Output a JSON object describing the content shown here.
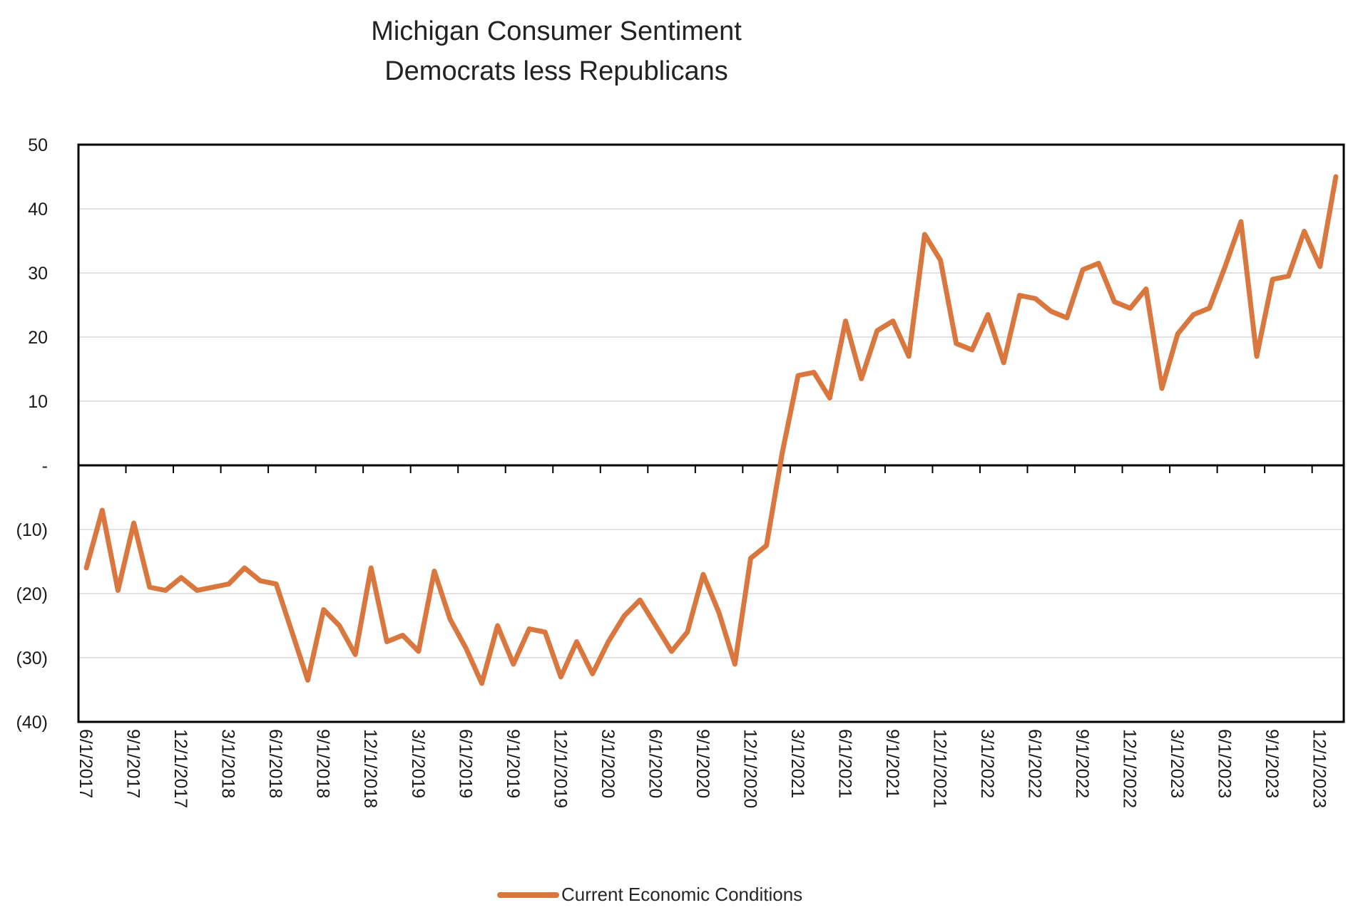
{
  "title": {
    "line1": "Michigan Consumer Sentiment",
    "line2": "Democrats less Republicans"
  },
  "legend": {
    "label": "Current Economic Conditions",
    "color": "#D9773E"
  },
  "chart_data": {
    "type": "line",
    "title": "Michigan Consumer Sentiment — Democrats less Republicans",
    "xlabel": "",
    "ylabel": "",
    "ylim": [
      -40,
      50
    ],
    "grid": "horizontal",
    "gridline_values": [
      40,
      30,
      20,
      10,
      -10,
      -20,
      -30
    ],
    "zero_axis": true,
    "legend_position": "bottom-center",
    "y_tick_labels": [
      "50",
      "40",
      "30",
      "20",
      "10",
      "-",
      "(10)",
      "(20)",
      "(30)",
      "(40)"
    ],
    "x_tick_labels": [
      "6/1/2017",
      "9/1/2017",
      "12/1/2017",
      "3/1/2018",
      "6/1/2018",
      "9/1/2018",
      "12/1/2018",
      "3/1/2019",
      "6/1/2019",
      "9/1/2019",
      "12/1/2019",
      "3/1/2020",
      "6/1/2020",
      "9/1/2020",
      "12/1/2020",
      "3/1/2021",
      "6/1/2021",
      "9/1/2021",
      "12/1/2021",
      "3/1/2022",
      "6/1/2022",
      "9/1/2022",
      "12/1/2022",
      "3/1/2023",
      "6/1/2023",
      "9/1/2023",
      "12/1/2023"
    ],
    "x_tick_label_rotation": 90,
    "x": [
      "6/1/2017",
      "7/1/2017",
      "8/1/2017",
      "9/1/2017",
      "10/1/2017",
      "11/1/2017",
      "12/1/2017",
      "1/1/2018",
      "2/1/2018",
      "3/1/2018",
      "4/1/2018",
      "5/1/2018",
      "6/1/2018",
      "7/1/2018",
      "8/1/2018",
      "9/1/2018",
      "10/1/2018",
      "11/1/2018",
      "12/1/2018",
      "1/1/2019",
      "2/1/2019",
      "3/1/2019",
      "4/1/2019",
      "5/1/2019",
      "6/1/2019",
      "7/1/2019",
      "8/1/2019",
      "9/1/2019",
      "10/1/2019",
      "11/1/2019",
      "12/1/2019",
      "1/1/2020",
      "2/1/2020",
      "3/1/2020",
      "4/1/2020",
      "5/1/2020",
      "6/1/2020",
      "7/1/2020",
      "8/1/2020",
      "9/1/2020",
      "10/1/2020",
      "11/1/2020",
      "12/1/2020",
      "1/1/2021",
      "2/1/2021",
      "3/1/2021",
      "4/1/2021",
      "5/1/2021",
      "6/1/2021",
      "7/1/2021",
      "8/1/2021",
      "9/1/2021",
      "10/1/2021",
      "11/1/2021",
      "12/1/2021",
      "1/1/2022",
      "2/1/2022",
      "3/1/2022",
      "4/1/2022",
      "5/1/2022",
      "6/1/2022",
      "7/1/2022",
      "8/1/2022",
      "9/1/2022",
      "10/1/2022",
      "11/1/2022",
      "12/1/2022",
      "1/1/2023",
      "2/1/2023",
      "3/1/2023",
      "4/1/2023",
      "5/1/2023",
      "6/1/2023",
      "7/1/2023",
      "8/1/2023",
      "9/1/2023",
      "10/1/2023",
      "11/1/2023",
      "12/1/2023",
      "1/1/2024"
    ],
    "series": [
      {
        "name": "Current Economic Conditions",
        "color": "#D9773E",
        "values": [
          -16,
          -7,
          -19.5,
          -9,
          -19,
          -19.5,
          -17.5,
          -19.5,
          -19,
          -18.5,
          -16,
          -18,
          -18.5,
          -26,
          -33.5,
          -22.5,
          -25,
          -29.5,
          -16,
          -27.5,
          -26.5,
          -29,
          -16.5,
          -24,
          -28.5,
          -34,
          -25,
          -31,
          -25.5,
          -26,
          -33,
          -27.5,
          -32.5,
          -27.5,
          -23.5,
          -21,
          -25,
          -29,
          -26,
          -17,
          -23,
          -31,
          -14.5,
          -12.5,
          2,
          14,
          14.5,
          10.5,
          22.5,
          13.5,
          21,
          22.5,
          17,
          36,
          32,
          19,
          18,
          23.5,
          16,
          26.5,
          26,
          24,
          23,
          30.5,
          31.5,
          25.5,
          24.5,
          27.5,
          12,
          20.5,
          23.5,
          24.5,
          31,
          38,
          17,
          29,
          29.5,
          36.5,
          31,
          45
        ]
      }
    ]
  }
}
